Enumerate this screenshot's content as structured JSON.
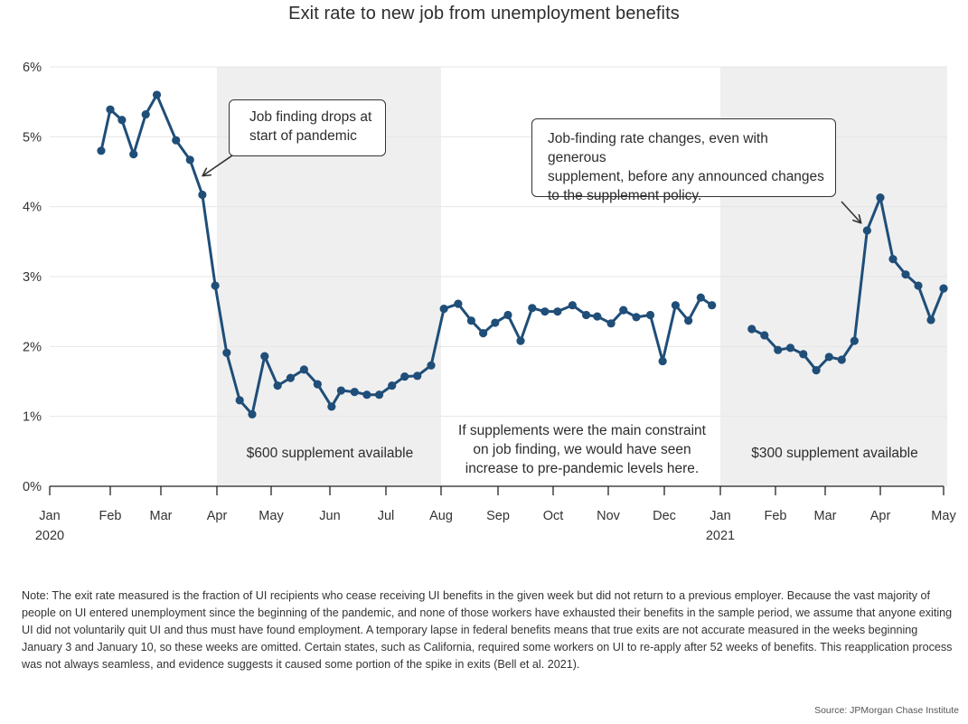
{
  "chart_data": {
    "type": "line",
    "title": "Exit rate to new job from unemployment benefits",
    "xlabel": "",
    "ylabel": "",
    "ylim": [
      0,
      6
    ],
    "y_ticks": [
      "0%",
      "1%",
      "2%",
      "3%",
      "4%",
      "5%",
      "6%"
    ],
    "y_tick_values": [
      0,
      1,
      2,
      3,
      4,
      5,
      6
    ],
    "grid": "horizontal",
    "x_ticks": [
      {
        "label": "Jan",
        "sub": "2020",
        "month_index": 0
      },
      {
        "label": "Feb",
        "sub": "",
        "month_index": 1
      },
      {
        "label": "Mar",
        "sub": "",
        "month_index": 2
      },
      {
        "label": "Apr",
        "sub": "",
        "month_index": 3
      },
      {
        "label": "May",
        "sub": "",
        "month_index": 4
      },
      {
        "label": "Jun",
        "sub": "",
        "month_index": 5
      },
      {
        "label": "Jul",
        "sub": "",
        "month_index": 6
      },
      {
        "label": "Aug",
        "sub": "",
        "month_index": 7
      },
      {
        "label": "Sep",
        "sub": "",
        "month_index": 8
      },
      {
        "label": "Oct",
        "sub": "",
        "month_index": 9
      },
      {
        "label": "Nov",
        "sub": "",
        "month_index": 10
      },
      {
        "label": "Dec",
        "sub": "",
        "month_index": 11
      },
      {
        "label": "Jan",
        "sub": "2021",
        "month_index": 12
      },
      {
        "label": "Feb",
        "sub": "",
        "month_index": 13
      },
      {
        "label": "Mar",
        "sub": "",
        "month_index": 14
      },
      {
        "label": "Apr",
        "sub": "",
        "month_index": 15
      },
      {
        "label": "May",
        "sub": "",
        "month_index": 16
      }
    ],
    "shaded_regions": [
      {
        "label": "$600 supplement available",
        "start": 3,
        "end": 7
      },
      {
        "label": "$300 supplement available",
        "start": 12,
        "end": 16.1
      }
    ],
    "series": [
      {
        "name": "Exit rate (2020)",
        "color": "#1f4e79",
        "x": [
          0.85,
          1.0,
          1.23,
          1.46,
          1.7,
          1.92,
          2.27,
          2.52,
          2.74,
          2.97,
          3.18,
          3.42,
          3.65,
          3.88,
          4.11,
          4.33,
          4.56,
          4.79,
          5.03,
          5.2,
          5.44,
          5.66,
          5.88,
          6.11,
          6.34,
          6.57,
          6.82,
          7.05,
          7.3,
          7.53,
          7.74,
          7.95,
          8.18,
          8.41,
          8.62,
          8.85,
          9.08,
          9.35,
          9.6,
          9.8,
          10.05,
          10.27,
          10.5,
          10.75,
          10.97,
          11.2,
          11.43,
          11.65,
          11.85
        ],
        "values": [
          4.8,
          5.39,
          5.24,
          4.75,
          5.32,
          5.6,
          4.95,
          4.67,
          4.17,
          2.87,
          1.91,
          1.23,
          1.03,
          1.86,
          1.44,
          1.55,
          1.67,
          1.46,
          1.14,
          1.37,
          1.35,
          1.31,
          1.31,
          1.44,
          1.57,
          1.58,
          1.73,
          2.54,
          2.61,
          2.37,
          2.19,
          2.34,
          2.45,
          2.08,
          2.55,
          2.5,
          2.5,
          2.59,
          2.45,
          2.43,
          2.33,
          2.52,
          2.42,
          2.45,
          1.79,
          2.59,
          2.37,
          2.7,
          2.59
        ]
      },
      {
        "name": "Exit rate (2021)",
        "color": "#1f4e79",
        "x": [
          12.57,
          12.8,
          13.05,
          13.3,
          13.56,
          13.82,
          14.07,
          14.3,
          14.53,
          14.76,
          15.0,
          15.2,
          15.4,
          15.6,
          15.8,
          16.0
        ],
        "values": [
          2.25,
          2.16,
          1.95,
          1.98,
          1.89,
          1.66,
          1.85,
          1.81,
          2.08,
          3.66,
          4.13,
          3.25,
          3.03,
          2.87,
          2.38,
          2.83
        ]
      }
    ],
    "annotations": [
      {
        "id": "callout-1",
        "text": "Job finding drops at start of pandemic",
        "lines": [
          "Job finding drops at",
          "start of pandemic"
        ]
      },
      {
        "id": "callout-2",
        "text": "Job-finding rate changes, even with generous supplement, before any announced changes to the supplement policy.",
        "lines": [
          "Job-finding rate changes, even with generous",
          "supplement, before any announced changes",
          "to the supplement policy."
        ]
      },
      {
        "id": "mid-note",
        "lines": [
          "If supplements were the main constraint",
          "on job finding, we would have seen",
          "increase to pre-pandemic levels here."
        ]
      }
    ],
    "legend": "none"
  },
  "colors": {
    "line": "#1f4e79",
    "shade": "#efefef",
    "grid": "#e6e6e6",
    "axis": "#222222",
    "text": "#333333"
  },
  "footer": {
    "note": "Note: The exit rate measured is the fraction of UI recipients who cease receiving UI benefits in the given week but did not return to a previous employer. Because the vast majority of people on UI entered unemployment since the beginning of the pandemic, and none of those workers have exhausted their benefits in the sample period, we assume that anyone exiting UI did not voluntarily quit UI and thus must have found employment. A temporary lapse in federal benefits means that true exits are not accurate measured in the weeks beginning January 3 and January 10, so these weeks are omitted. Certain states, such as California, required some workers on UI to re-apply after 52 weeks of benefits. This reapplication process was not always seamless, and evidence suggests it caused some portion of the spike in exits (Bell et al. 2021).",
    "source": "Source: JPMorgan Chase Institute"
  }
}
